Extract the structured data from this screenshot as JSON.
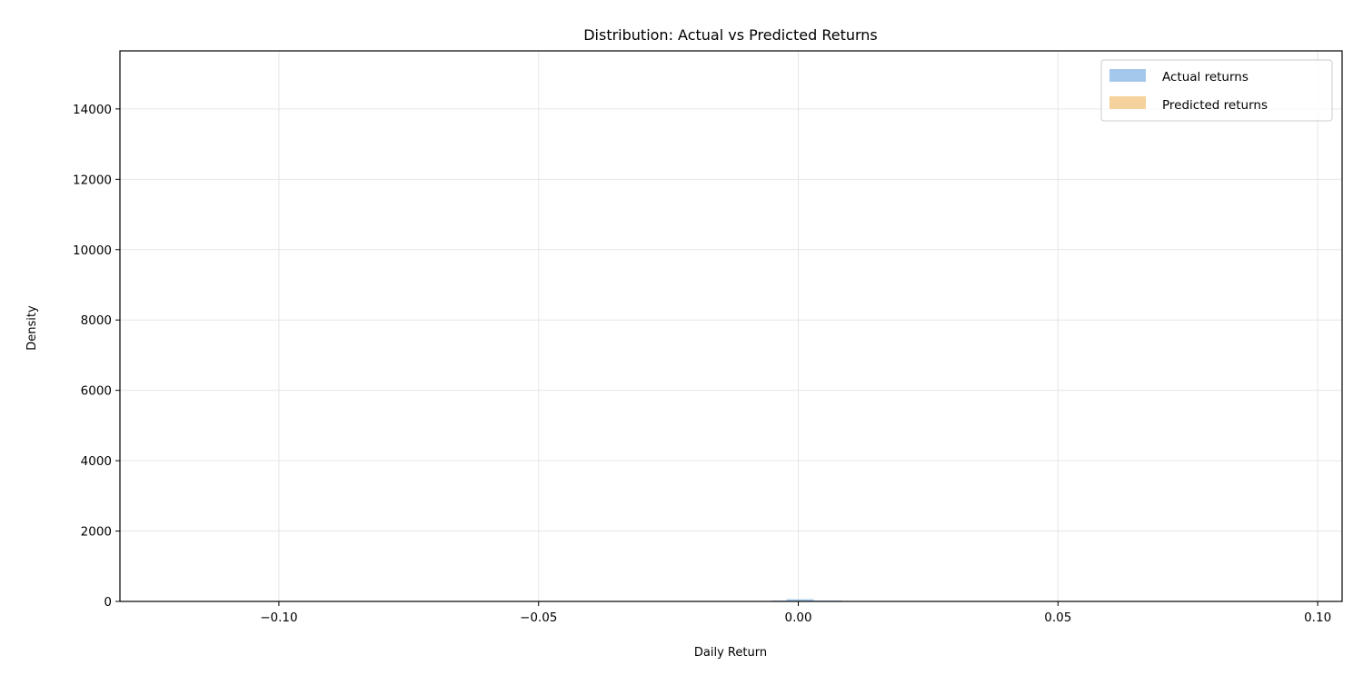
{
  "chart_data": {
    "type": "bar",
    "title": "Distribution: Actual vs Predicted Returns",
    "xlabel": "Daily Return",
    "ylabel": "Density",
    "xlim": [
      -0.1306,
      0.1047
    ],
    "ylim": [
      0,
      15650
    ],
    "xticks": [
      -0.1,
      -0.05,
      0.0,
      0.05,
      0.1
    ],
    "xtick_labels": [
      "−0.10",
      "−0.05",
      "0.00",
      "0.05",
      "0.10"
    ],
    "yticks": [
      0,
      2000,
      4000,
      6000,
      8000,
      10000,
      12000,
      14000
    ],
    "ytick_labels": [
      "0",
      "2000",
      "4000",
      "6000",
      "8000",
      "10000",
      "12000",
      "14000"
    ],
    "grid": true,
    "legend_placement": "top-right",
    "series": [
      {
        "name": "Actual returns",
        "color": "#a4c8ec",
        "bins": [
          {
            "x0": -0.0051,
            "x1": -0.0023,
            "value": 25
          },
          {
            "x0": -0.0023,
            "x1": 0.003,
            "value": 60
          },
          {
            "x0": 0.003,
            "x1": 0.0084,
            "value": 25
          }
        ]
      },
      {
        "name": "Predicted returns",
        "color": "#f5d29b",
        "bins": []
      }
    ]
  }
}
